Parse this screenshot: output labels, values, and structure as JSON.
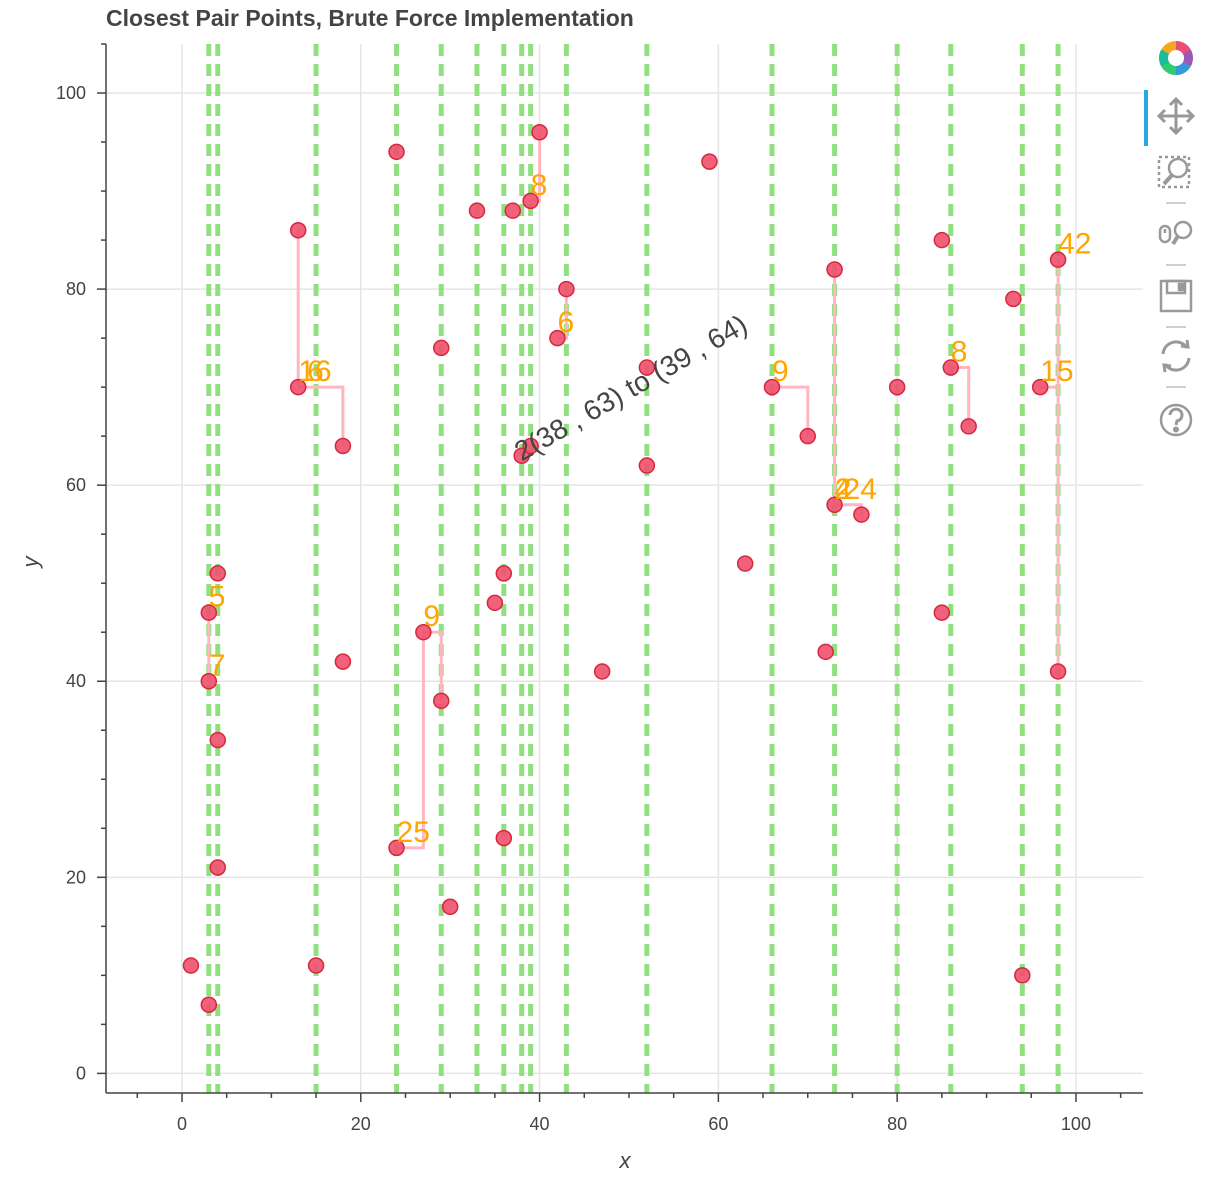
{
  "chart_data": {
    "type": "scatter",
    "title": "Closest Pair Points, Brute Force Implementation",
    "xlabel": "x",
    "ylabel": "y",
    "xlim": [
      -8.5,
      107.5
    ],
    "ylim": [
      -2,
      105
    ],
    "xticks": [
      0,
      20,
      40,
      60,
      80,
      100
    ],
    "yticks": [
      0,
      20,
      40,
      60,
      80,
      100
    ],
    "grid": true,
    "colors": {
      "point_fill": "#f0506e",
      "point_stroke": "#d6283c",
      "split_line": "#90e080",
      "pair_line": "#ffb6c1",
      "annotation": "#ffa500",
      "result_text": "#444444"
    },
    "points": [
      [
        1,
        11
      ],
      [
        3,
        7
      ],
      [
        3,
        40
      ],
      [
        3,
        47
      ],
      [
        4,
        34
      ],
      [
        4,
        21
      ],
      [
        4,
        51
      ],
      [
        13,
        86
      ],
      [
        13,
        70
      ],
      [
        15,
        11
      ],
      [
        18,
        64
      ],
      [
        18,
        42
      ],
      [
        24,
        94
      ],
      [
        24,
        23
      ],
      [
        27,
        45
      ],
      [
        29,
        74
      ],
      [
        29,
        38
      ],
      [
        30,
        17
      ],
      [
        33,
        88
      ],
      [
        35,
        48
      ],
      [
        36,
        51
      ],
      [
        36,
        24
      ],
      [
        37,
        88
      ],
      [
        38,
        63
      ],
      [
        39,
        64
      ],
      [
        39,
        89
      ],
      [
        40,
        96
      ],
      [
        42,
        75
      ],
      [
        43,
        80
      ],
      [
        47,
        41
      ],
      [
        52,
        72
      ],
      [
        52,
        62
      ],
      [
        59,
        93
      ],
      [
        63,
        52
      ],
      [
        66,
        70
      ],
      [
        70,
        65
      ],
      [
        72,
        43
      ],
      [
        73,
        82
      ],
      [
        73,
        58
      ],
      [
        76,
        57
      ],
      [
        80,
        70
      ],
      [
        85,
        85
      ],
      [
        85,
        47
      ],
      [
        86,
        72
      ],
      [
        88,
        66
      ],
      [
        93,
        79
      ],
      [
        94,
        10
      ],
      [
        96,
        70
      ],
      [
        98,
        83
      ],
      [
        98,
        41
      ]
    ],
    "split_lines_x": [
      3,
      4,
      15,
      24,
      29,
      33,
      36,
      38,
      39,
      43,
      52,
      66,
      73,
      80,
      86,
      94,
      98
    ],
    "pair_paths": [
      [
        [
          3,
          47
        ],
        [
          3,
          40
        ]
      ],
      [
        [
          13,
          86
        ],
        [
          13,
          70
        ]
      ],
      [
        [
          13,
          70
        ],
        [
          18,
          70
        ],
        [
          18,
          64
        ]
      ],
      [
        [
          24,
          23
        ],
        [
          27,
          23
        ],
        [
          27,
          45
        ]
      ],
      [
        [
          27,
          45
        ],
        [
          29,
          45
        ],
        [
          29,
          38
        ]
      ],
      [
        [
          39,
          89
        ],
        [
          40,
          89
        ],
        [
          40,
          96
        ]
      ],
      [
        [
          42,
          75
        ],
        [
          43,
          75
        ],
        [
          43,
          80
        ]
      ],
      [
        [
          66,
          70
        ],
        [
          70,
          70
        ],
        [
          70,
          65
        ]
      ],
      [
        [
          73,
          82
        ],
        [
          73,
          58
        ]
      ],
      [
        [
          73,
          58
        ],
        [
          76,
          58
        ],
        [
          76,
          57
        ]
      ],
      [
        [
          86,
          72
        ],
        [
          88,
          72
        ],
        [
          88,
          66
        ]
      ],
      [
        [
          96,
          70
        ],
        [
          98,
          70
        ],
        [
          98,
          41
        ]
      ],
      [
        [
          98,
          83
        ],
        [
          98,
          70
        ]
      ]
    ],
    "annotations": [
      {
        "x": 3,
        "y": 47,
        "text": "5"
      },
      {
        "x": 3,
        "y": 40,
        "text": "7"
      },
      {
        "x": 13,
        "y": 70,
        "text": "16"
      },
      {
        "x": 14,
        "y": 70,
        "text": "6"
      },
      {
        "x": 24,
        "y": 23,
        "text": "25"
      },
      {
        "x": 27,
        "y": 45,
        "text": "9"
      },
      {
        "x": 39,
        "y": 89,
        "text": "8"
      },
      {
        "x": 42,
        "y": 75,
        "text": "6"
      },
      {
        "x": 66,
        "y": 70,
        "text": "9"
      },
      {
        "x": 73,
        "y": 58,
        "text": "2"
      },
      {
        "x": 73,
        "y": 58,
        "text": "4"
      },
      {
        "x": 74,
        "y": 58,
        "text": "24"
      },
      {
        "x": 86,
        "y": 72,
        "text": "8"
      },
      {
        "x": 96,
        "y": 70,
        "text": "15"
      },
      {
        "x": 98,
        "y": 83,
        "text": "42"
      }
    ],
    "result_annotation": {
      "x": 38,
      "y": 63,
      "text": "2(38 , 63) to (39 , 64)"
    }
  },
  "toolbar": {
    "items": [
      {
        "name": "bokeh-logo-icon"
      },
      {
        "name": "pan-tool-icon"
      },
      {
        "name": "box-zoom-tool-icon"
      },
      {
        "name": "wheel-zoom-tool-icon"
      },
      {
        "name": "save-tool-icon"
      },
      {
        "name": "reset-tool-icon"
      },
      {
        "name": "help-tool-icon"
      }
    ]
  }
}
